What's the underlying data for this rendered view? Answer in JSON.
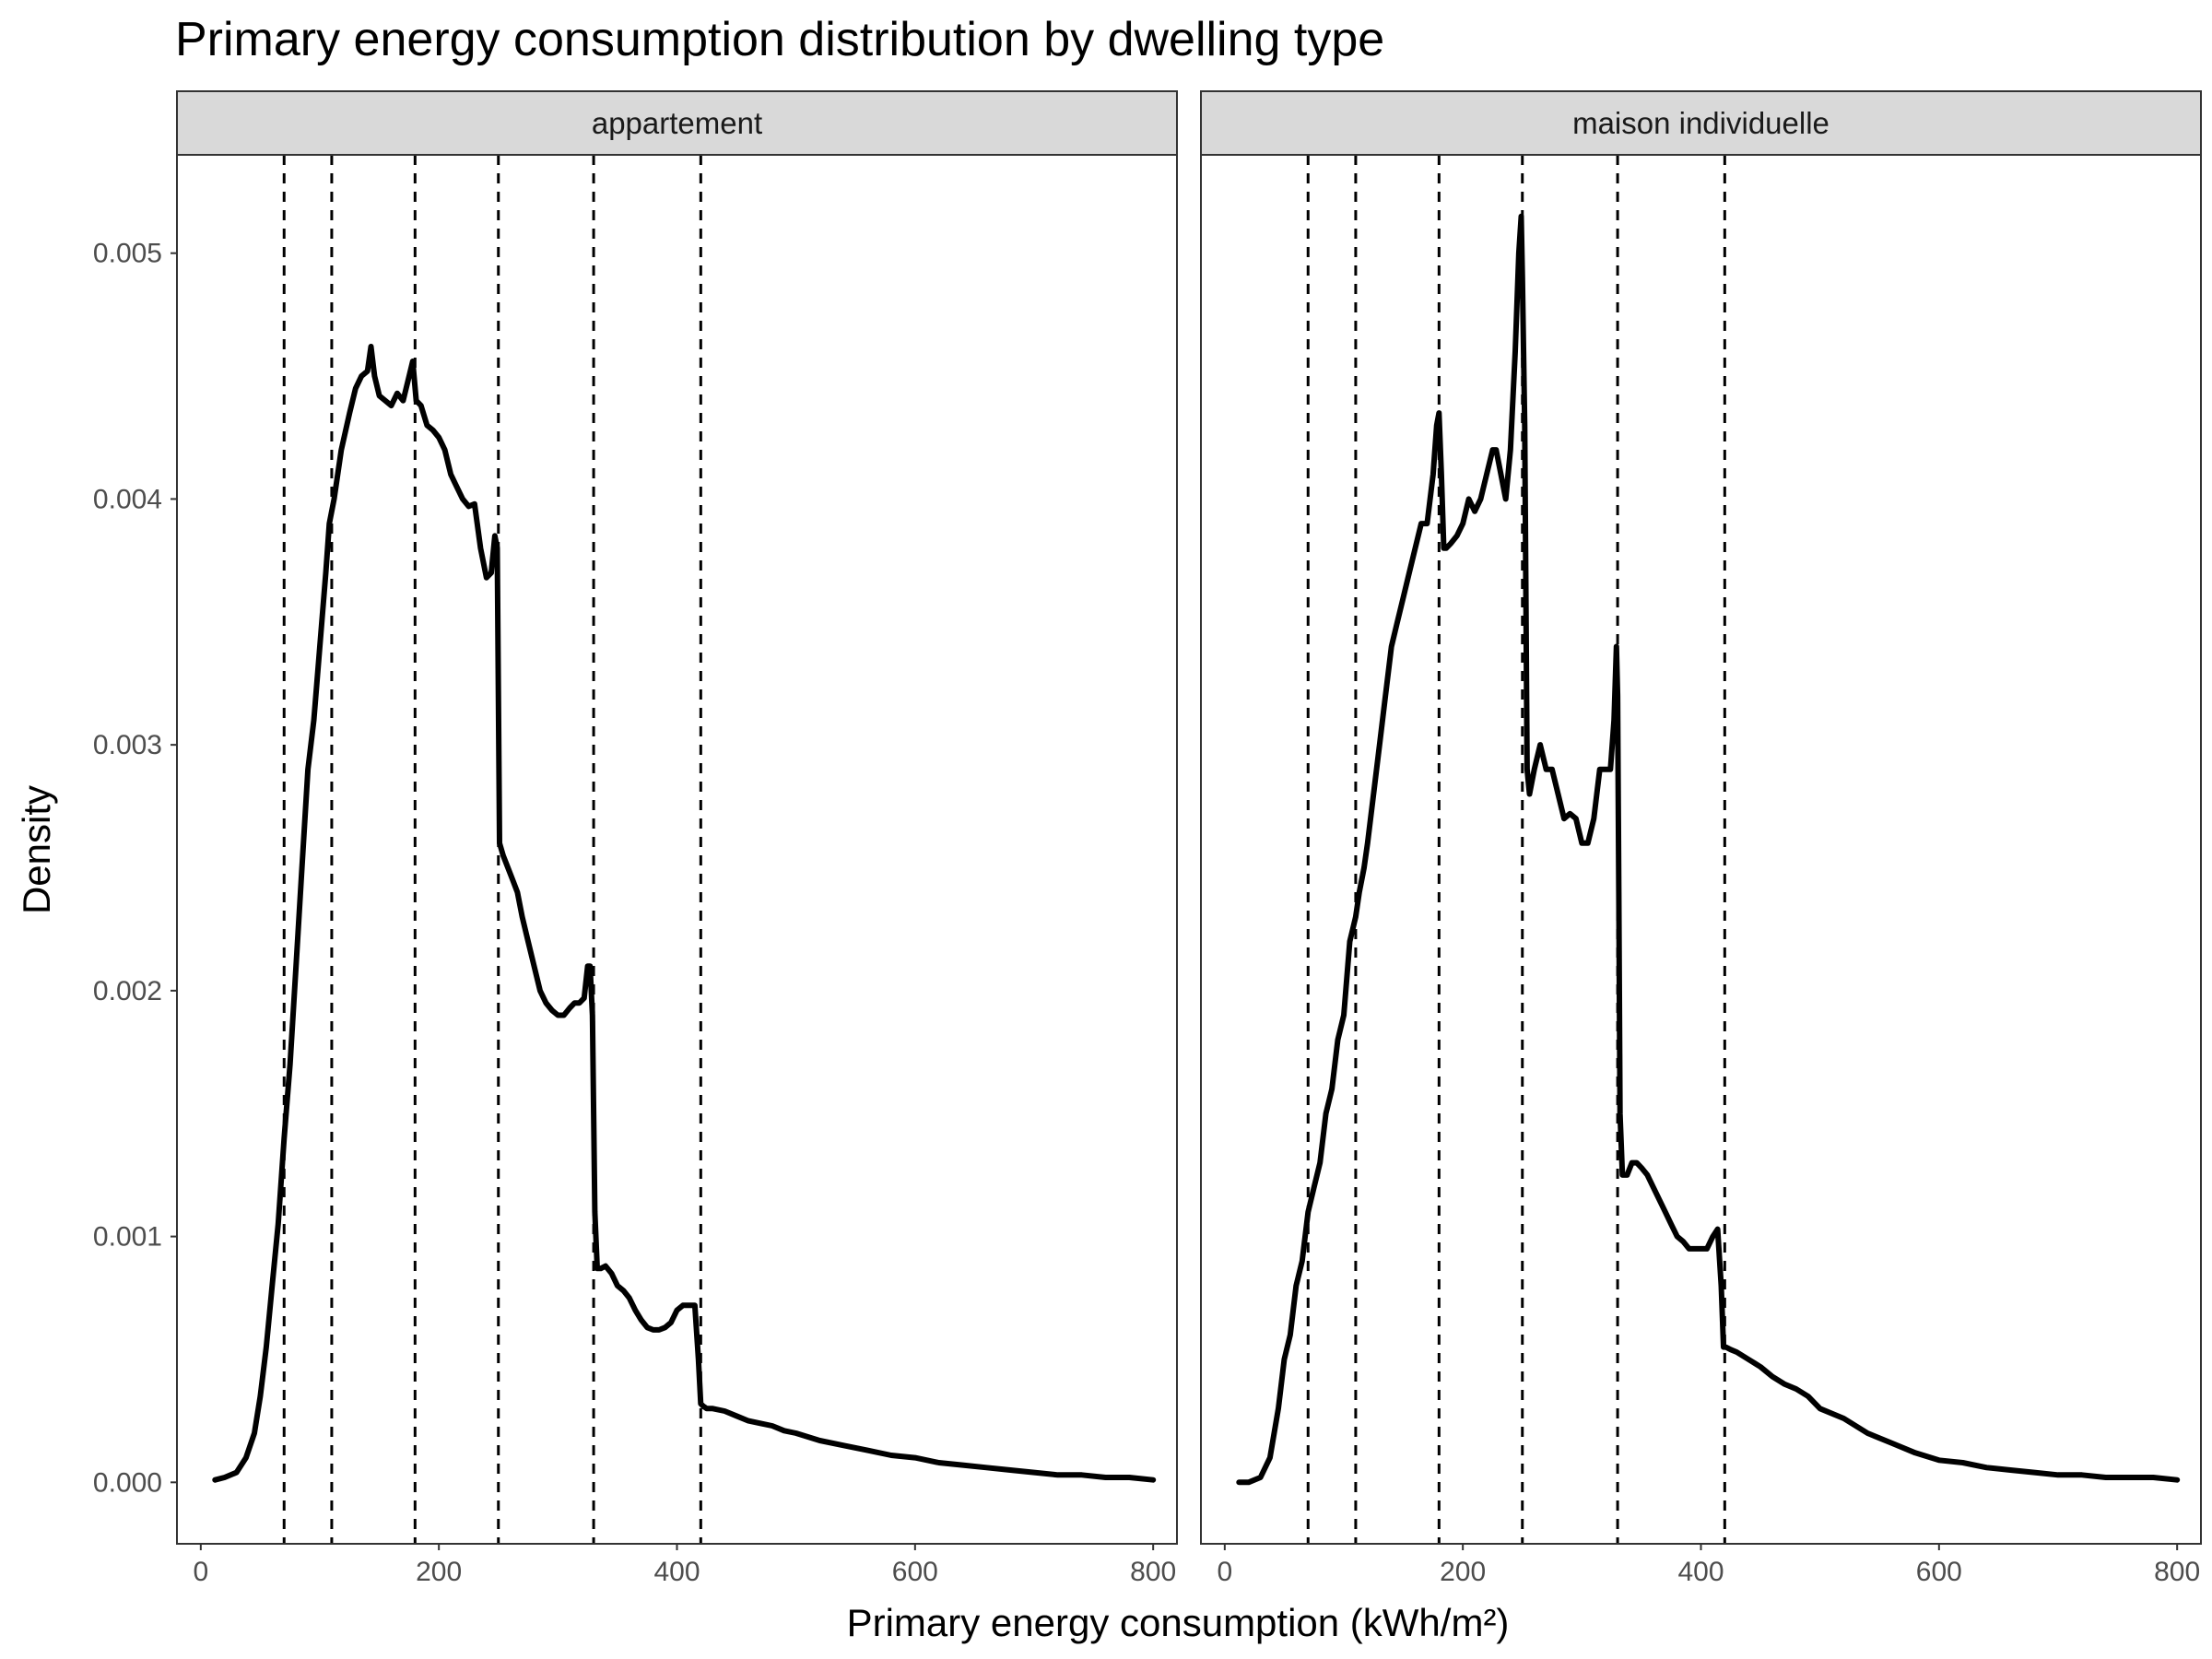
{
  "chart_data": {
    "type": "line",
    "title": "Primary energy consumption distribution by dwelling type",
    "xlabel": "Primary energy consumption (kWh/m²)",
    "ylabel": "Density",
    "xlim": [
      -20,
      820
    ],
    "ylim": [
      -0.00025,
      0.0054
    ],
    "x_ticks": [
      0,
      200,
      400,
      600,
      800
    ],
    "x_tick_labels": [
      "0",
      "200",
      "400",
      "600",
      "800"
    ],
    "y_ticks": [
      0,
      0.001,
      0.002,
      0.003,
      0.004,
      0.005
    ],
    "y_tick_labels": [
      "0.000",
      "0.001",
      "0.002",
      "0.003",
      "0.004",
      "0.005"
    ],
    "reference_lines_x": [
      70,
      110,
      180,
      250,
      330,
      420
    ],
    "grid": false,
    "line_color": "#000000",
    "panels": [
      {
        "strip": "appartement",
        "x": [
          12,
          20,
          30,
          38,
          45,
          50,
          55,
          60,
          65,
          70,
          75,
          80,
          85,
          90,
          95,
          100,
          105,
          108,
          112,
          118,
          125,
          130,
          135,
          140,
          143,
          146,
          150,
          155,
          160,
          165,
          170,
          175,
          178,
          181,
          185,
          190,
          195,
          200,
          205,
          210,
          215,
          220,
          225,
          230,
          235,
          240,
          244,
          247,
          249,
          251,
          254,
          258,
          262,
          266,
          270,
          275,
          280,
          285,
          290,
          295,
          300,
          305,
          310,
          314,
          318,
          322,
          325,
          327,
          329,
          331,
          333,
          336,
          340,
          345,
          350,
          355,
          360,
          365,
          370,
          375,
          380,
          385,
          390,
          395,
          400,
          405,
          410,
          415,
          418,
          420,
          422,
          425,
          430,
          440,
          450,
          460,
          470,
          480,
          490,
          500,
          520,
          540,
          560,
          580,
          600,
          620,
          640,
          660,
          680,
          700,
          720,
          740,
          760,
          780,
          800
        ],
        "y": [
          1e-05,
          2e-05,
          4e-05,
          0.0001,
          0.0002,
          0.00035,
          0.00055,
          0.0008,
          0.00105,
          0.0014,
          0.0017,
          0.0021,
          0.0025,
          0.0029,
          0.0031,
          0.0034,
          0.0037,
          0.0039,
          0.004,
          0.0042,
          0.00435,
          0.00445,
          0.0045,
          0.00452,
          0.00462,
          0.0045,
          0.00442,
          0.0044,
          0.00438,
          0.00443,
          0.0044,
          0.0045,
          0.00456,
          0.0044,
          0.00438,
          0.0043,
          0.00428,
          0.00425,
          0.0042,
          0.0041,
          0.00405,
          0.004,
          0.00397,
          0.00398,
          0.0038,
          0.00368,
          0.0037,
          0.00385,
          0.0038,
          0.0026,
          0.00255,
          0.0025,
          0.00245,
          0.0024,
          0.0023,
          0.0022,
          0.0021,
          0.002,
          0.00195,
          0.00192,
          0.0019,
          0.0019,
          0.00193,
          0.00195,
          0.00195,
          0.00197,
          0.0021,
          0.0021,
          0.0019,
          0.0011,
          0.00087,
          0.00087,
          0.00088,
          0.00085,
          0.0008,
          0.00078,
          0.00075,
          0.0007,
          0.00066,
          0.00063,
          0.00062,
          0.00062,
          0.00063,
          0.00065,
          0.0007,
          0.00072,
          0.00072,
          0.00072,
          0.0005,
          0.00032,
          0.00031,
          0.0003,
          0.0003,
          0.00029,
          0.00027,
          0.00025,
          0.00024,
          0.00023,
          0.00021,
          0.0002,
          0.00017,
          0.00015,
          0.00013,
          0.00011,
          0.0001,
          8e-05,
          7e-05,
          6e-05,
          5e-05,
          4e-05,
          3e-05,
          3e-05,
          2e-05,
          2e-05,
          1e-05
        ]
      },
      {
        "strip": "maison individuelle",
        "x": [
          12,
          20,
          30,
          38,
          45,
          50,
          55,
          60,
          65,
          70,
          75,
          80,
          85,
          90,
          95,
          100,
          105,
          110,
          113,
          117,
          120,
          125,
          130,
          135,
          140,
          145,
          150,
          155,
          160,
          165,
          170,
          175,
          178,
          180,
          182,
          184,
          186,
          190,
          195,
          200,
          205,
          210,
          215,
          220,
          225,
          228,
          232,
          236,
          240,
          244,
          247,
          249,
          250,
          252,
          254,
          256,
          260,
          265,
          270,
          275,
          280,
          285,
          290,
          295,
          300,
          305,
          310,
          315,
          320,
          324,
          327,
          329,
          330,
          331,
          332,
          334,
          338,
          342,
          346,
          350,
          355,
          360,
          365,
          370,
          375,
          380,
          385,
          390,
          395,
          400,
          405,
          410,
          414,
          417,
          419,
          421,
          425,
          430,
          440,
          450,
          460,
          470,
          480,
          490,
          500,
          520,
          540,
          560,
          580,
          600,
          620,
          640,
          660,
          680,
          700,
          720,
          740,
          760,
          780,
          800
        ],
        "y": [
          0.0,
          0.0,
          2e-05,
          0.0001,
          0.0003,
          0.0005,
          0.0006,
          0.0008,
          0.0009,
          0.0011,
          0.0012,
          0.0013,
          0.0015,
          0.0016,
          0.0018,
          0.0019,
          0.0022,
          0.0023,
          0.0024,
          0.0025,
          0.0026,
          0.0028,
          0.003,
          0.0032,
          0.0034,
          0.0035,
          0.0036,
          0.0037,
          0.0038,
          0.0039,
          0.0039,
          0.0041,
          0.0043,
          0.00435,
          0.0041,
          0.0038,
          0.0038,
          0.00382,
          0.00385,
          0.0039,
          0.004,
          0.00395,
          0.004,
          0.0041,
          0.0042,
          0.0042,
          0.0041,
          0.004,
          0.0042,
          0.0046,
          0.005,
          0.00515,
          0.0049,
          0.0043,
          0.0029,
          0.0028,
          0.0029,
          0.003,
          0.0029,
          0.0029,
          0.0028,
          0.0027,
          0.00272,
          0.0027,
          0.0026,
          0.0026,
          0.0027,
          0.0029,
          0.0029,
          0.0029,
          0.0031,
          0.0034,
          0.0032,
          0.0024,
          0.0015,
          0.00125,
          0.00125,
          0.0013,
          0.0013,
          0.00128,
          0.00125,
          0.0012,
          0.00115,
          0.0011,
          0.00105,
          0.001,
          0.00098,
          0.00095,
          0.00095,
          0.00095,
          0.00095,
          0.001,
          0.00103,
          0.0008,
          0.00055,
          0.00055,
          0.00054,
          0.00053,
          0.0005,
          0.00047,
          0.00043,
          0.0004,
          0.00038,
          0.00035,
          0.0003,
          0.00026,
          0.0002,
          0.00016,
          0.00012,
          9e-05,
          8e-05,
          6e-05,
          5e-05,
          4e-05,
          3e-05,
          3e-05,
          2e-05,
          2e-05,
          2e-05,
          1e-05
        ]
      }
    ]
  }
}
